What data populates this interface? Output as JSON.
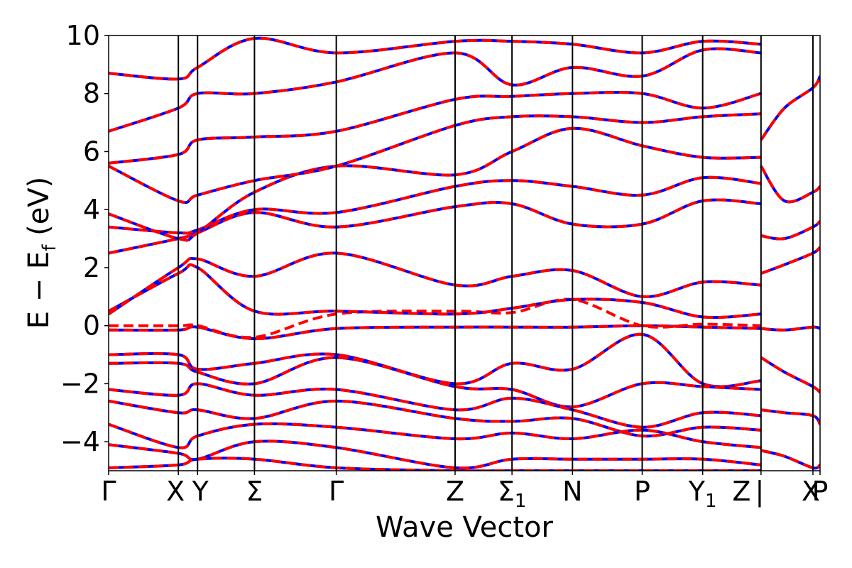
{
  "chart_data": {
    "type": "line",
    "title": "",
    "xlabel": "Wave Vector",
    "ylabel_parts": {
      "main": "E − E",
      "sub": "f",
      "tail": " (eV)"
    },
    "ylim": [
      -5,
      10
    ],
    "yticks": [
      -4,
      -2,
      0,
      2,
      4,
      6,
      8,
      10
    ],
    "ytick_labels": [
      "−4",
      "−2",
      "0",
      "2",
      "4",
      "6",
      "8",
      "10"
    ],
    "xlim": [
      0,
      10
    ],
    "kpoints": [
      {
        "x": 0.0,
        "label": "Γ",
        "sub": ""
      },
      {
        "x": 0.98,
        "label": "X",
        "sub": ""
      },
      {
        "x": 1.25,
        "label": "Y",
        "sub": ""
      },
      {
        "x": 2.05,
        "label": "Σ",
        "sub": ""
      },
      {
        "x": 3.2,
        "label": "Γ",
        "sub": ""
      },
      {
        "x": 4.87,
        "label": "Z",
        "sub": ""
      },
      {
        "x": 5.67,
        "label": "Σ",
        "sub": "1"
      },
      {
        "x": 6.52,
        "label": "N",
        "sub": ""
      },
      {
        "x": 7.5,
        "label": "P",
        "sub": ""
      },
      {
        "x": 8.35,
        "label": "Y",
        "sub": "1"
      },
      {
        "x": 9.17,
        "label": "Z",
        "sub": "",
        "extra": "|"
      },
      {
        "x": 9.9,
        "label": "X",
        "sub": ""
      },
      {
        "x": 10.0,
        "label": "P",
        "sub": ""
      }
    ],
    "grid": false,
    "legend": "none",
    "colors": {
      "solid": "#0000ff",
      "dashed": "#ff0000",
      "vlines": "#000000"
    },
    "series": [
      {
        "style": "solid",
        "x": [
          0,
          0.98,
          1.25,
          2.05,
          3.2,
          4.87,
          5.67,
          6.52,
          7.5,
          8.35,
          9.17
        ],
        "y": [
          -0.15,
          -0.15,
          -0.05,
          -0.45,
          -0.1,
          -0.05,
          -0.05,
          -0.05,
          0,
          -0.05,
          -0.1
        ]
      },
      {
        "style": "dashed",
        "x": [
          0,
          0.98,
          1.25,
          2.05,
          3.2,
          4.87,
          5.67,
          6.52,
          7.5,
          8.35,
          9.17
        ],
        "y": [
          0,
          0,
          0,
          -0.4,
          0.4,
          0.5,
          0.45,
          0.9,
          0,
          0.05,
          0
        ]
      },
      {
        "style": "solid",
        "x": [
          0,
          0.98,
          1.25,
          2.05,
          3.2,
          4.87,
          5.67,
          6.52,
          7.5,
          8.35,
          9.17
        ],
        "y": [
          0.5,
          1.8,
          2.0,
          0.5,
          0.5,
          0.4,
          0.6,
          0.9,
          0.8,
          0.3,
          0.4
        ]
      },
      {
        "style": "solid",
        "x": [
          0,
          0.98,
          1.25,
          2.05,
          3.2,
          4.87,
          5.67,
          6.52,
          7.5,
          8.35,
          9.17
        ],
        "y": [
          0.4,
          2.0,
          2.3,
          1.7,
          2.5,
          1.4,
          1.7,
          1.9,
          1.0,
          1.5,
          1.4
        ]
      },
      {
        "style": "solid",
        "x": [
          0,
          0.98,
          1.25,
          2.05,
          3.2,
          4.87,
          5.67,
          6.52,
          7.5,
          8.35,
          9.17
        ],
        "y": [
          2.5,
          3.0,
          3.2,
          3.9,
          3.4,
          4.1,
          4.2,
          3.5,
          3.5,
          4.3,
          4.2
        ]
      },
      {
        "style": "solid",
        "x": [
          0,
          0.98,
          1.25,
          2.05,
          3.2,
          4.87,
          5.67,
          6.52,
          7.5,
          8.35,
          9.17
        ],
        "y": [
          3.4,
          3.2,
          3.3,
          4.0,
          3.9,
          4.8,
          5.0,
          4.8,
          4.5,
          5.1,
          4.9
        ]
      },
      {
        "style": "solid",
        "x": [
          0,
          0.98,
          1.25,
          2.05,
          3.2,
          4.87,
          5.67,
          6.52,
          7.5,
          8.35,
          9.17
        ],
        "y": [
          3.85,
          3.0,
          3.2,
          4.6,
          5.5,
          5.2,
          6.0,
          6.8,
          6.2,
          5.8,
          5.8
        ]
      },
      {
        "style": "solid",
        "x": [
          0,
          0.98,
          1.25,
          2.05,
          3.2,
          4.87,
          5.67,
          6.52,
          7.5,
          8.35,
          9.17
        ],
        "y": [
          5.5,
          4.3,
          4.5,
          5.0,
          5.5,
          6.9,
          7.2,
          7.2,
          7.0,
          7.2,
          7.3
        ]
      },
      {
        "style": "solid",
        "x": [
          0,
          0.98,
          1.25,
          2.05,
          3.2,
          4.87,
          5.67,
          6.52,
          7.5,
          8.35,
          9.17
        ],
        "y": [
          5.6,
          5.9,
          6.4,
          6.5,
          6.7,
          7.8,
          7.9,
          8.0,
          8.0,
          7.5,
          8.0
        ]
      },
      {
        "style": "solid",
        "x": [
          0,
          0.98,
          1.25,
          2.05,
          3.2,
          4.87,
          5.67,
          6.52,
          7.5,
          8.35,
          9.17
        ],
        "y": [
          6.7,
          7.5,
          8.0,
          8.0,
          8.4,
          9.4,
          8.3,
          8.9,
          8.6,
          9.5,
          9.4
        ]
      },
      {
        "style": "solid",
        "x": [
          0,
          0.98,
          1.25,
          2.05,
          3.2,
          4.87,
          5.67,
          6.52,
          7.5,
          8.35,
          9.17
        ],
        "y": [
          8.7,
          8.5,
          8.9,
          9.9,
          9.4,
          9.8,
          9.8,
          9.7,
          9.4,
          9.8,
          9.7
        ]
      },
      {
        "style": "solid",
        "x": [
          0,
          0.98,
          1.25,
          2.05,
          3.2,
          4.87,
          5.67,
          6.52,
          7.5,
          8.35,
          9.17
        ],
        "y": [
          -1.0,
          -1.0,
          -1.5,
          -1.3,
          -1.0,
          -2.0,
          -1.3,
          -1.5,
          -0.3,
          -2.0,
          -1.9
        ]
      },
      {
        "style": "solid",
        "x": [
          0,
          0.98,
          1.25,
          2.05,
          3.2,
          4.87,
          5.67,
          6.52,
          7.5,
          8.35,
          9.17
        ],
        "y": [
          -1.3,
          -1.3,
          -1.6,
          -2.0,
          -1.1,
          -2.1,
          -2.2,
          -2.8,
          -2.0,
          -2.1,
          -2.2
        ]
      },
      {
        "style": "solid",
        "x": [
          0,
          0.98,
          1.25,
          2.05,
          3.2,
          4.87,
          5.67,
          6.52,
          7.5,
          8.35,
          9.17
        ],
        "y": [
          -2.2,
          -2.4,
          -2.0,
          -2.4,
          -2.2,
          -2.9,
          -2.5,
          -2.9,
          -3.5,
          -3.0,
          -3.1
        ]
      },
      {
        "style": "solid",
        "x": [
          0,
          0.98,
          1.25,
          2.05,
          3.2,
          4.87,
          5.67,
          6.52,
          7.5,
          8.35,
          9.17
        ],
        "y": [
          -2.6,
          -3.0,
          -2.9,
          -3.2,
          -2.6,
          -3.2,
          -3.3,
          -3.2,
          -3.8,
          -3.5,
          -3.6
        ]
      },
      {
        "style": "solid",
        "x": [
          0,
          0.98,
          1.25,
          2.05,
          3.2,
          4.87,
          5.67,
          6.52,
          7.5,
          8.35,
          9.17
        ],
        "y": [
          -3.4,
          -4.2,
          -3.8,
          -3.4,
          -3.5,
          -3.9,
          -3.7,
          -3.9,
          -3.6,
          -4.0,
          -4.2
        ]
      },
      {
        "style": "solid",
        "x": [
          0,
          0.98,
          1.25,
          2.05,
          3.2,
          4.87,
          5.67,
          6.52,
          7.5,
          8.35,
          9.17
        ],
        "y": [
          -4.1,
          -4.4,
          -4.6,
          -4.0,
          -4.2,
          -4.9,
          -4.6,
          -4.6,
          -4.6,
          -4.6,
          -4.8
        ]
      },
      {
        "style": "solid",
        "x": [
          0,
          0.98,
          1.25,
          2.05,
          3.2,
          4.87,
          5.67,
          6.52,
          7.5,
          8.35,
          9.17
        ],
        "y": [
          -4.9,
          -4.8,
          -4.6,
          -4.6,
          -4.9,
          -5.0,
          -5.0,
          -5.0,
          -5.0,
          -5.0,
          -5.0
        ]
      },
      {
        "style": "solid",
        "x": [
          9.17,
          9.5,
          9.9,
          10.0
        ],
        "y": [
          -0.1,
          -0.15,
          -0.05,
          -0.1
        ]
      },
      {
        "style": "solid",
        "x": [
          9.17,
          9.5,
          9.9,
          10.0
        ],
        "y": [
          1.8,
          2.1,
          2.5,
          2.7
        ]
      },
      {
        "style": "solid",
        "x": [
          9.17,
          9.5,
          9.9,
          10.0
        ],
        "y": [
          3.1,
          3.0,
          3.4,
          3.6
        ]
      },
      {
        "style": "solid",
        "x": [
          9.17,
          9.5,
          9.9,
          10.0
        ],
        "y": [
          5.5,
          4.3,
          4.6,
          4.8
        ]
      },
      {
        "style": "solid",
        "x": [
          9.17,
          9.5,
          9.9,
          10.0
        ],
        "y": [
          6.4,
          7.5,
          8.2,
          8.6
        ]
      },
      {
        "style": "solid",
        "x": [
          9.17,
          9.5,
          9.9,
          10.0
        ],
        "y": [
          -1.1,
          -1.6,
          -2.1,
          -2.3
        ]
      },
      {
        "style": "solid",
        "x": [
          9.17,
          9.5,
          9.9,
          10.0
        ],
        "y": [
          -2.9,
          -3.0,
          -3.1,
          -3.4
        ]
      },
      {
        "style": "solid",
        "x": [
          9.17,
          9.5,
          9.9,
          10.0
        ],
        "y": [
          -4.3,
          -4.5,
          -4.9,
          -4.8
        ]
      }
    ]
  }
}
